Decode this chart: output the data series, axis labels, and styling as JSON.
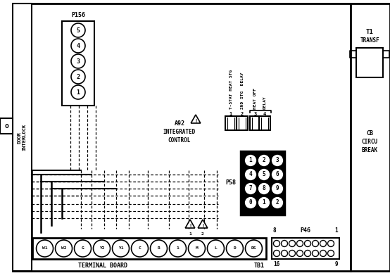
{
  "bg_color": "#ffffff",
  "line_color": "#000000",
  "fig_width": 5.54,
  "fig_height": 3.95,
  "dpi": 100,
  "terminal_labels": [
    "W1",
    "W2",
    "G",
    "Y2",
    "Y1",
    "C",
    "R",
    "1",
    "M",
    "L",
    "D",
    "DS"
  ],
  "p58_pins": [
    [
      "3",
      "2",
      "1"
    ],
    [
      "6",
      "5",
      "4"
    ],
    [
      "9",
      "8",
      "7"
    ],
    [
      "2",
      "1",
      "0"
    ]
  ]
}
